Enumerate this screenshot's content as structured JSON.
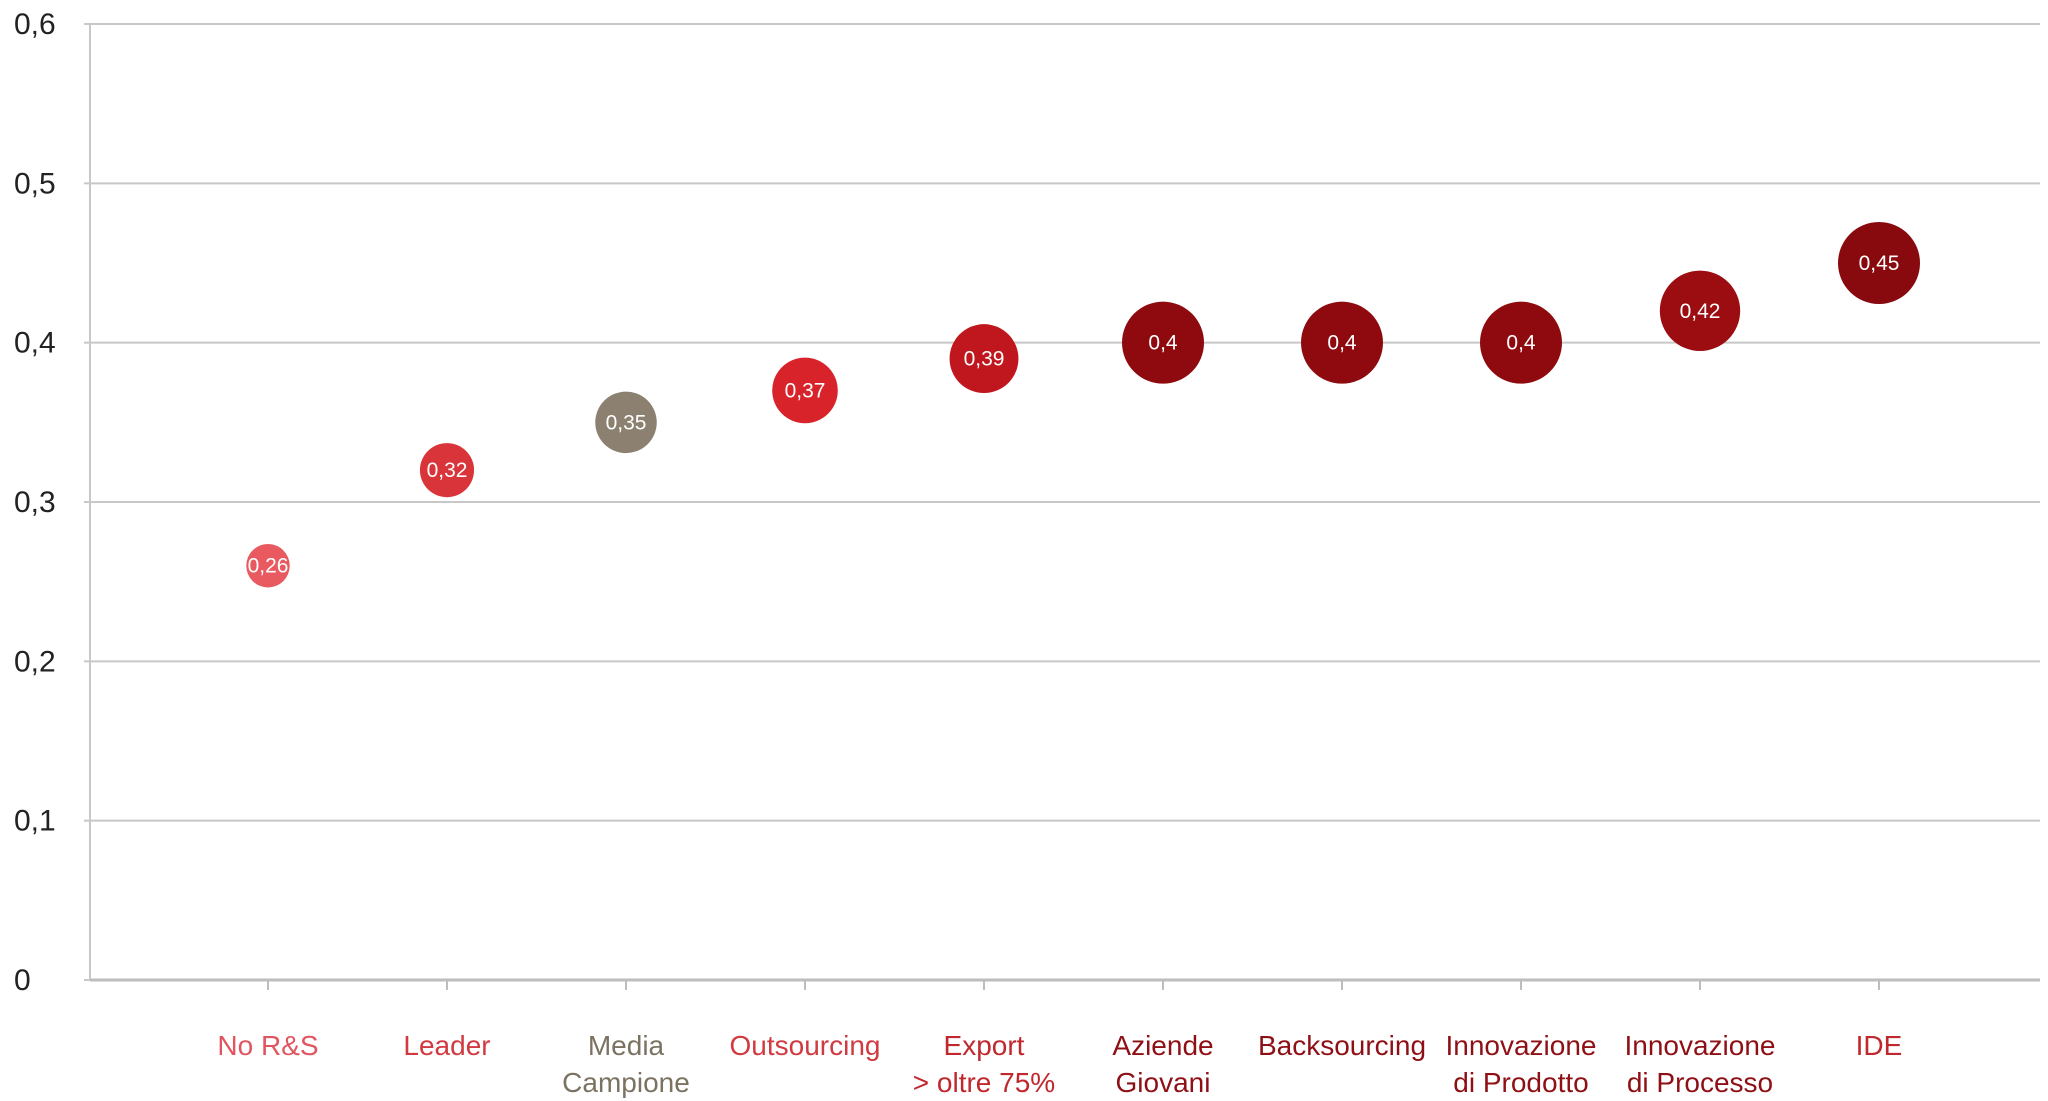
{
  "chart_data": {
    "type": "scatter",
    "title": "",
    "xlabel": "",
    "ylabel": "",
    "ylim": [
      0,
      0.6
    ],
    "yticks": [
      0,
      0.1,
      0.2,
      0.3,
      0.4,
      0.5,
      0.6
    ],
    "ytick_labels": [
      "0",
      "0,1",
      "0,2",
      "0,3",
      "0,4",
      "0,5",
      "0,6"
    ],
    "grid": true,
    "legend": "none",
    "categories": [
      [
        "No R&S"
      ],
      [
        "Leader"
      ],
      [
        "Media",
        "Campione"
      ],
      [
        "Outsourcing"
      ],
      [
        "Export",
        "> oltre 75%"
      ],
      [
        "Aziende",
        "Giovani"
      ],
      [
        "Backsourcing"
      ],
      [
        "Innovazione",
        "di Prodotto"
      ],
      [
        "Innovazione",
        "di Processo"
      ],
      [
        "IDE"
      ]
    ],
    "values": [
      0.26,
      0.32,
      0.35,
      0.37,
      0.39,
      0.4,
      0.4,
      0.4,
      0.42,
      0.45
    ],
    "value_labels": [
      "0,26",
      "0,32",
      "0,35",
      "0,37",
      "0,39",
      "0,4",
      "0,4",
      "0,4",
      "0,42",
      "0,45"
    ],
    "colors": [
      "#e85a60",
      "#d93439",
      "#8c8170",
      "#d8232a",
      "#c0171e",
      "#8e0a0e",
      "#8e0a0e",
      "#8e0a0e",
      "#9c0d12",
      "#880a0e"
    ],
    "label_colors": [
      "#e05560",
      "#d03a40",
      "#7c7262",
      "#d03a40",
      "#c0282e",
      "#8e1015",
      "#8e1015",
      "#8e1015",
      "#8e1015",
      "#c0282e"
    ],
    "bubble_size_relative": [
      0.53,
      0.66,
      0.75,
      0.8,
      0.84,
      1.0,
      1.0,
      1.0,
      0.98,
      1.0
    ]
  }
}
